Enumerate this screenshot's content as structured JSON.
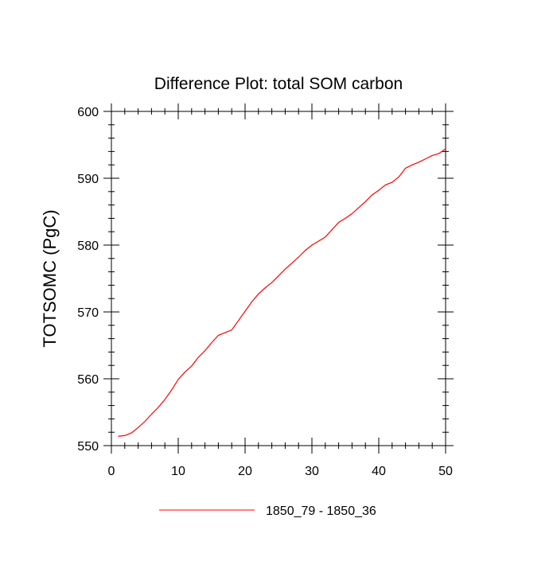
{
  "chart_data": {
    "type": "line",
    "title": "Difference Plot: total SOM carbon",
    "xlabel": "",
    "ylabel": "TOTSOMC  (PgC)",
    "xlim": [
      0,
      50
    ],
    "ylim": [
      550,
      600
    ],
    "x_ticks": [
      0,
      10,
      20,
      30,
      40,
      50
    ],
    "y_ticks": [
      550,
      560,
      570,
      580,
      590,
      600
    ],
    "x_tick_labels": [
      "0",
      "10",
      "20",
      "30",
      "40",
      "50"
    ],
    "y_tick_labels": [
      "550",
      "560",
      "570",
      "580",
      "590",
      "600"
    ],
    "grid": false,
    "legend_position": "bottom",
    "series": [
      {
        "name": "1850_79 - 1850_36",
        "color": "#ff0000",
        "x": [
          1,
          2,
          3,
          4,
          5,
          6,
          7,
          8,
          9,
          10,
          11,
          12,
          13,
          14,
          15,
          16,
          17,
          18,
          19,
          20,
          21,
          22,
          23,
          24,
          25,
          26,
          27,
          28,
          29,
          30,
          31,
          32,
          33,
          34,
          35,
          36,
          37,
          38,
          39,
          40,
          41,
          42,
          43,
          44,
          45,
          46,
          47,
          48,
          49,
          50
        ],
        "y": [
          551.4,
          551.5,
          551.9,
          552.7,
          553.6,
          554.7,
          555.7,
          556.9,
          558.3,
          559.9,
          561.0,
          561.9,
          563.2,
          564.2,
          565.4,
          566.5,
          566.9,
          567.3,
          568.7,
          570.1,
          571.5,
          572.7,
          573.6,
          574.4,
          575.4,
          576.4,
          577.3,
          578.2,
          579.2,
          580.0,
          580.6,
          581.2,
          582.3,
          583.4,
          584.0,
          584.7,
          585.6,
          586.5,
          587.5,
          588.2,
          589.0,
          589.4,
          590.2,
          591.5,
          592.0,
          592.4,
          592.9,
          593.4,
          593.7,
          594.4
        ]
      }
    ]
  }
}
